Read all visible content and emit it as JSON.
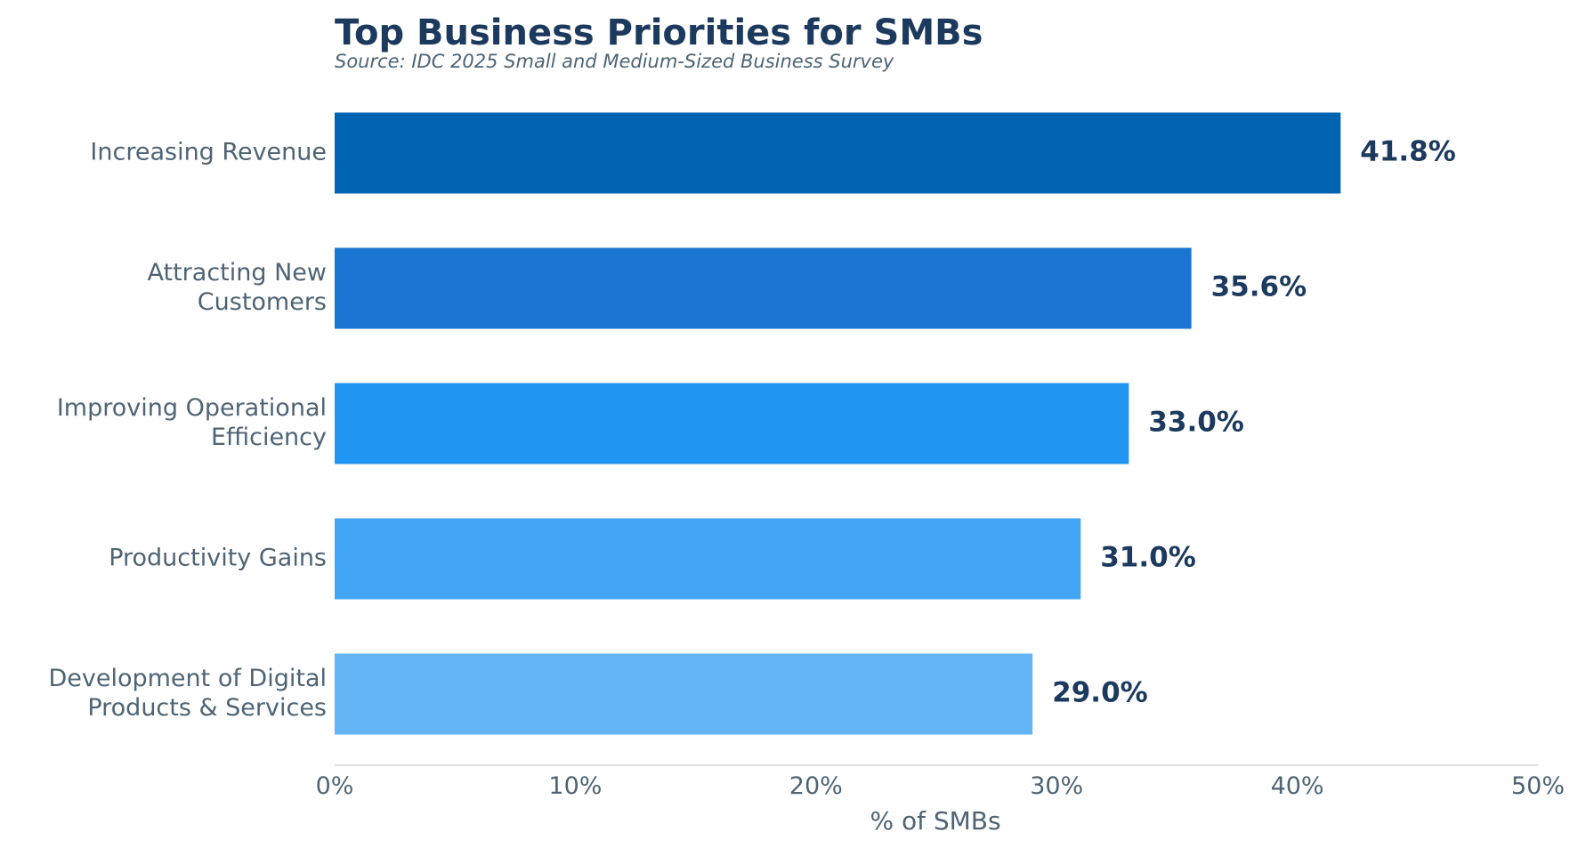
{
  "chart_data": {
    "type": "bar",
    "orientation": "horizontal",
    "title": "Top Business Priorities for SMBs",
    "subtitle": "Source: IDC 2025 Small and Medium-Sized Business Survey",
    "xlabel": "% of SMBs",
    "ylabel": "",
    "categories": [
      [
        "Increasing Revenue"
      ],
      [
        "Attracting New",
        "Customers"
      ],
      [
        "Improving Operational",
        "Efficiency"
      ],
      [
        "Productivity Gains"
      ],
      [
        "Development of Digital",
        "Products & Services"
      ]
    ],
    "values": [
      41.8,
      35.6,
      33.0,
      31.0,
      29.0
    ],
    "value_labels": [
      "41.8%",
      "35.6%",
      "33.0%",
      "31.0%",
      "29.0%"
    ],
    "bar_colors": [
      "#0064b3",
      "#1a76d2",
      "#2195f2",
      "#42a5f5",
      "#64b5f6"
    ],
    "xlim": [
      0,
      50
    ],
    "xticks": [
      0,
      10,
      20,
      30,
      40,
      50
    ],
    "xtick_labels": [
      "0%",
      "10%",
      "20%",
      "30%",
      "40%",
      "50%"
    ],
    "grid": false,
    "legend": "none",
    "colors": {
      "title": "#1c3a5e",
      "text": "#4e6475",
      "value_label": "#1c3a5e",
      "axis_line": "#d8d8d8"
    }
  }
}
